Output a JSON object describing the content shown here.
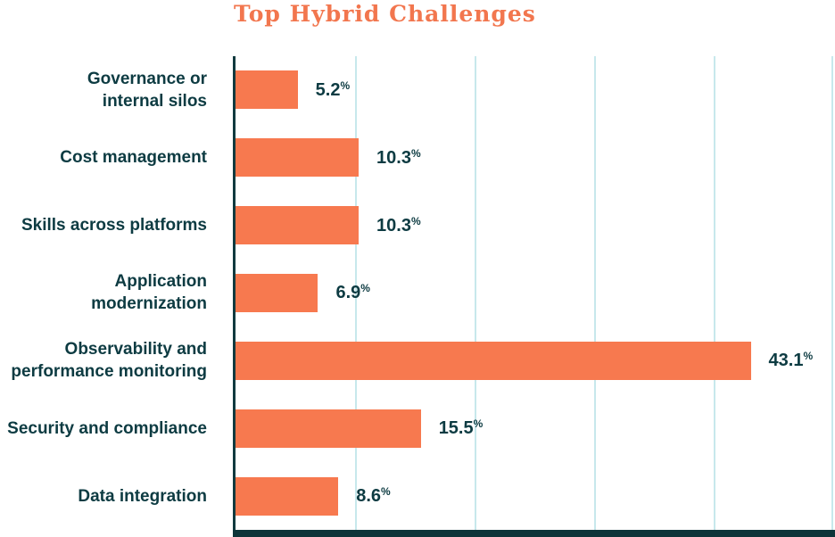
{
  "chart_data": {
    "type": "bar",
    "orientation": "horizontal",
    "title": "Top Hybrid Challenges",
    "categories": [
      [
        "Governance or",
        "internal silos"
      ],
      [
        "Cost management"
      ],
      [
        "Skills across platforms"
      ],
      [
        "Application",
        "modernization"
      ],
      [
        "Observability and",
        "performance monitoring"
      ],
      [
        "Security and compliance"
      ],
      [
        "Data integration"
      ]
    ],
    "values": [
      5.2,
      10.3,
      10.3,
      6.9,
      43.1,
      15.5,
      8.6
    ],
    "value_labels": [
      "5.2",
      "10.3",
      "10.3",
      "6.9",
      "43.1",
      "15.5",
      "8.6"
    ],
    "value_suffix": "%",
    "xlabel": "",
    "ylabel": "",
    "xlim": [
      0,
      50
    ],
    "grid_step": 10,
    "grid": true,
    "legend": "none",
    "colors": {
      "bar": "#F7794F",
      "title": "#F2764E",
      "text": "#0D3B42",
      "axis": "#113A3F",
      "baseline": "#0D3539",
      "gridline": "#C7E8EC"
    }
  }
}
